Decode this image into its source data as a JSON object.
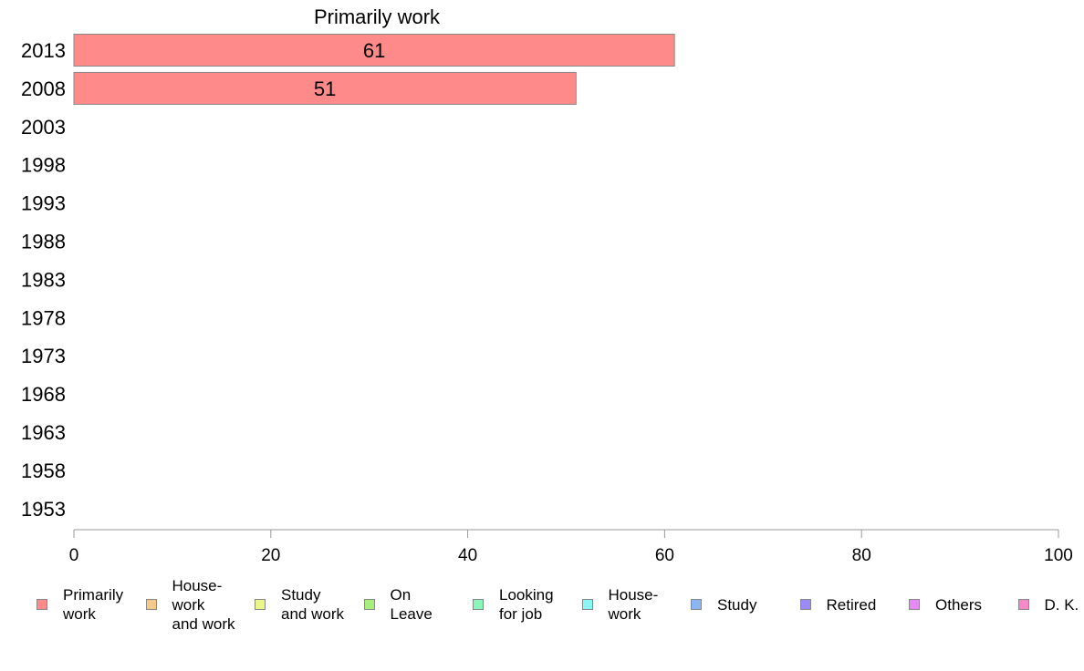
{
  "chart_data": {
    "type": "bar",
    "orientation": "horizontal",
    "title": "Primarily work",
    "categories": [
      "2013",
      "2008",
      "2003",
      "1998",
      "1993",
      "1988",
      "1983",
      "1978",
      "1973",
      "1968",
      "1963",
      "1958",
      "1953"
    ],
    "series": [
      {
        "name": "Primarily\nwork",
        "color": "#ff8a8a",
        "values": [
          61,
          51,
          null,
          null,
          null,
          null,
          null,
          null,
          null,
          null,
          null,
          null,
          null
        ]
      },
      {
        "name": "House-\nwork\nand work",
        "color": "#f5c98a",
        "values": [
          null,
          null,
          null,
          null,
          null,
          null,
          null,
          null,
          null,
          null,
          null,
          null,
          null
        ]
      },
      {
        "name": "Study\nand work",
        "color": "#eaf58a",
        "values": [
          null,
          null,
          null,
          null,
          null,
          null,
          null,
          null,
          null,
          null,
          null,
          null,
          null
        ]
      },
      {
        "name": "On\nLeave",
        "color": "#a6f07a",
        "values": [
          null,
          null,
          null,
          null,
          null,
          null,
          null,
          null,
          null,
          null,
          null,
          null,
          null
        ]
      },
      {
        "name": "Looking\nfor job",
        "color": "#8af5b8",
        "values": [
          null,
          null,
          null,
          null,
          null,
          null,
          null,
          null,
          null,
          null,
          null,
          null,
          null
        ]
      },
      {
        "name": "House-\nwork",
        "color": "#8af5f5",
        "values": [
          null,
          null,
          null,
          null,
          null,
          null,
          null,
          null,
          null,
          null,
          null,
          null,
          null
        ]
      },
      {
        "name": "Study",
        "color": "#8ab5f5",
        "values": [
          null,
          null,
          null,
          null,
          null,
          null,
          null,
          null,
          null,
          null,
          null,
          null,
          null
        ]
      },
      {
        "name": "Retired",
        "color": "#9a8af5",
        "values": [
          null,
          null,
          null,
          null,
          null,
          null,
          null,
          null,
          null,
          null,
          null,
          null,
          null
        ]
      },
      {
        "name": "Others",
        "color": "#e88af5",
        "values": [
          null,
          null,
          null,
          null,
          null,
          null,
          null,
          null,
          null,
          null,
          null,
          null,
          null
        ]
      },
      {
        "name": "D. K.",
        "color": "#f58ac8",
        "values": [
          null,
          null,
          null,
          null,
          null,
          null,
          null,
          null,
          null,
          null,
          null,
          null,
          null
        ]
      }
    ],
    "xlim": [
      0,
      100
    ],
    "xticks": [
      "0",
      "20",
      "40",
      "60",
      "80",
      "100"
    ],
    "grid": false,
    "legend_position": "bottom"
  }
}
